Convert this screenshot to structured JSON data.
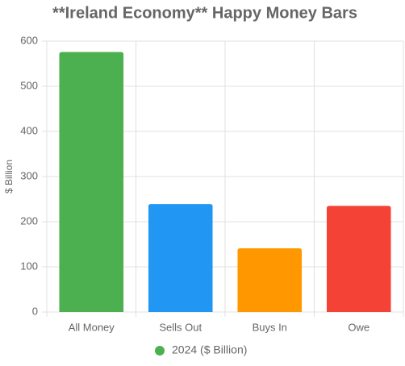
{
  "chart_data": {
    "type": "bar",
    "title": "**Ireland Economy** Happy Money Bars",
    "y_label": "$ Billion",
    "categories": [
      "All Money",
      "Sells Out",
      "Buys In",
      "Owe"
    ],
    "series": [
      {
        "name": "2024 ($ Billion)",
        "colors": [
          "#4caf50",
          "#2196f3",
          "#ff9800",
          "#f44336"
        ],
        "values": [
          576,
          239,
          141,
          235
        ]
      }
    ],
    "ylim": [
      0,
      600
    ],
    "yticks": [
      0,
      100,
      200,
      300,
      400,
      500,
      600
    ],
    "grid": true
  }
}
